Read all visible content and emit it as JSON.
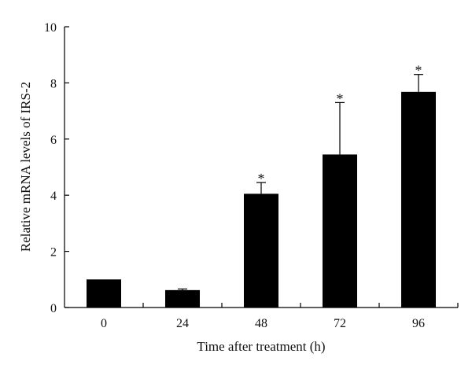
{
  "chart_data": {
    "type": "bar",
    "categories": [
      "0",
      "24",
      "48",
      "72",
      "96"
    ],
    "values": [
      1.0,
      0.62,
      4.05,
      5.45,
      7.68
    ],
    "error_upper": [
      0.0,
      0.04,
      0.4,
      1.85,
      0.62
    ],
    "annotations": [
      "",
      "",
      "*",
      "*",
      "*"
    ],
    "xlabel": "Time after treatment (h)",
    "ylabel": "Relative mRNA levels of IRS-2",
    "ylim": [
      0,
      10
    ],
    "yticks": [
      "0",
      "2",
      "4",
      "6",
      "8",
      "10"
    ],
    "bar_color": "#000000",
    "grid": false,
    "legend": "none"
  }
}
